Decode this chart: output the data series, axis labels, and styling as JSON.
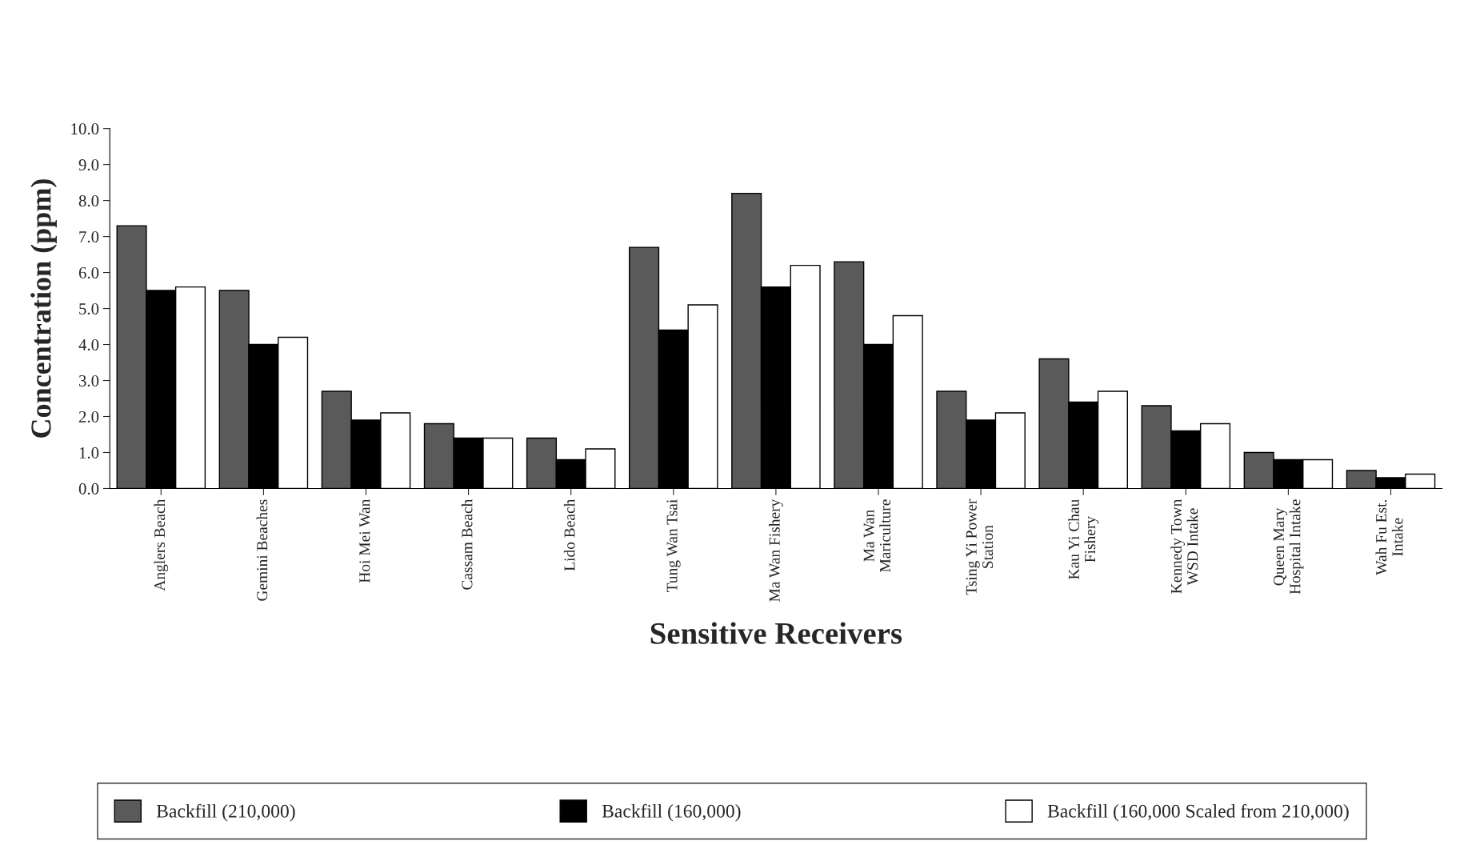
{
  "chart_data": {
    "type": "bar",
    "xlabel": "Sensitive Receivers",
    "ylabel": "Concentration (ppm)",
    "categories": [
      "Anglers Beach",
      "Gemini Beaches",
      "Hoi Mei Wan",
      "Cassam Beach",
      "Lido Beach",
      "Tung Wan Tsai",
      "Ma Wan Fishery",
      "Ma Wan\nMariculture",
      "Tsing Yi Power\nStation",
      "Kau Yi Chau\nFishery",
      "Kennedy Town\nWSD Intake",
      "Queen Mary\nHospital Intake",
      "Wah Fu Est.\nIntake"
    ],
    "series": [
      {
        "name": "Backfill (210,000)",
        "color": "#5a5a5a",
        "values": [
          7.3,
          5.5,
          2.7,
          1.8,
          1.4,
          6.7,
          8.2,
          6.3,
          2.7,
          3.6,
          2.3,
          1.0,
          0.5
        ]
      },
      {
        "name": "Backfill (160,000)",
        "color": "#000000",
        "values": [
          5.5,
          4.0,
          1.9,
          1.4,
          0.8,
          4.4,
          5.6,
          4.0,
          1.9,
          2.4,
          1.6,
          0.8,
          0.3
        ]
      },
      {
        "name": "Backfill (160,000 Scaled from 210,000)",
        "color": "#ffffff",
        "values": [
          5.6,
          4.2,
          2.1,
          1.4,
          1.1,
          5.1,
          6.2,
          4.8,
          2.1,
          2.7,
          1.8,
          0.8,
          0.4
        ]
      }
    ],
    "ylim": [
      0,
      10
    ],
    "yticks": [
      {
        "value": 0,
        "label": "0.0"
      },
      {
        "value": 1,
        "label": "1.0"
      },
      {
        "value": 2,
        "label": "2.0"
      },
      {
        "value": 3,
        "label": "3.0"
      },
      {
        "value": 4,
        "label": "4.0"
      },
      {
        "value": 5,
        "label": "5.0"
      },
      {
        "value": 6,
        "label": "6.0"
      },
      {
        "value": 7,
        "label": "7.0"
      },
      {
        "value": 8,
        "label": "8.0"
      },
      {
        "value": 9,
        "label": "9.0"
      },
      {
        "value": 10,
        "label": "10.0"
      }
    ],
    "grid": false,
    "legend": "bottom"
  }
}
